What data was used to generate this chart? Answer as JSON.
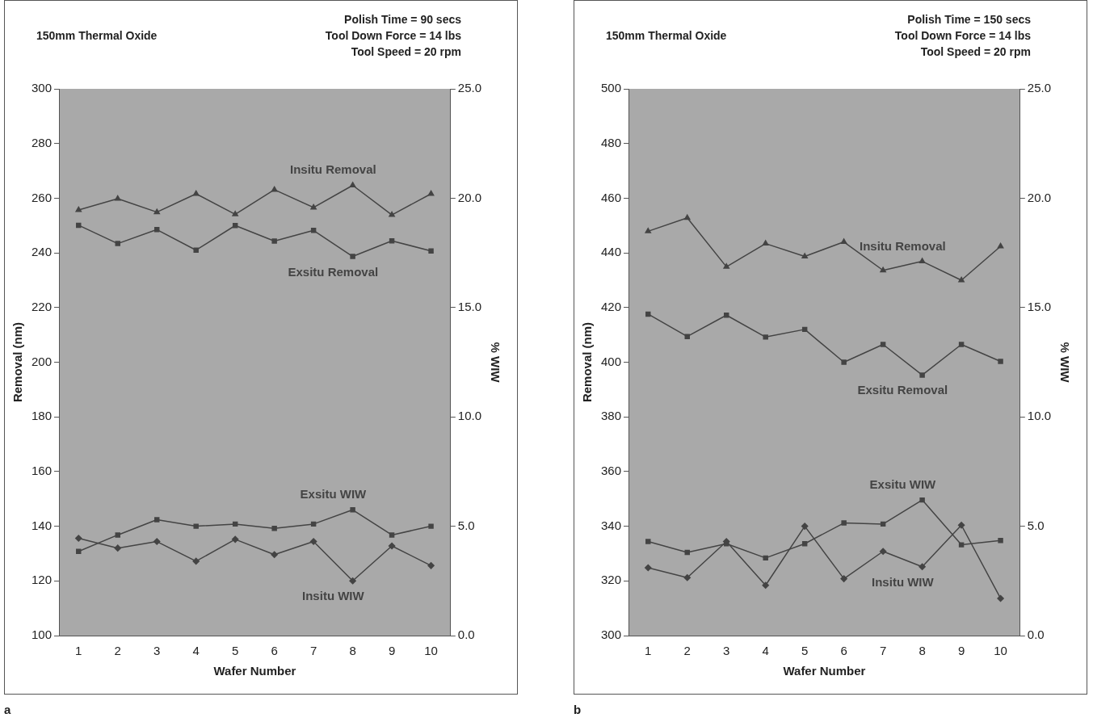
{
  "chart_data": [
    {
      "type": "line",
      "title": "150mm Thermal Oxide",
      "annotations": [
        "Polish Time = 90 secs",
        "Tool Down Force = 14 lbs",
        "Tool Speed = 20 rpm",
        "a"
      ],
      "xlabel": "Wafer Number",
      "ylabel": "Removal (nm)",
      "y2label": "% WIW",
      "categories": [
        "1",
        "2",
        "3",
        "4",
        "5",
        "6",
        "7",
        "8",
        "9",
        "10"
      ],
      "series": [
        {
          "name": "Insitu Removal",
          "color": "#444444",
          "marker": "triangle",
          "values": [
            255.7,
            259.8,
            254.9,
            261.6,
            254.1,
            263.1,
            256.6,
            264.7,
            253.9,
            261.6
          ]
        },
        {
          "name": "Exsitu Removal",
          "color": "#444444",
          "marker": "square",
          "values": [
            250.1,
            243.4,
            248.5,
            241.0,
            250.0,
            244.3,
            248.2,
            238.7,
            244.4,
            240.7
          ]
        },
        {
          "name": "Exsitu WIW",
          "color": "#444444",
          "marker": "square",
          "axis": "y2",
          "values": [
            3.85,
            4.6,
            5.3,
            5.0,
            5.1,
            4.9,
            5.1,
            5.75,
            4.6,
            5.0
          ]
        },
        {
          "name": "Insitu WIW",
          "color": "#444444",
          "marker": "diamond",
          "axis": "y2",
          "values": [
            4.45,
            4.0,
            4.3,
            3.4,
            4.4,
            3.7,
            4.3,
            2.5,
            4.1,
            3.2
          ]
        }
      ],
      "ylim": [
        100,
        300
      ],
      "yticks": [
        100,
        120,
        140,
        160,
        180,
        200,
        220,
        240,
        260,
        280,
        300
      ],
      "y2lim": [
        0,
        25
      ],
      "y2ticks": [
        {
          "value": 0,
          "label": "0.0"
        },
        {
          "value": 5,
          "label": "5.0"
        },
        {
          "value": 10,
          "label": "10.0"
        },
        {
          "value": 15,
          "label": "15.0"
        },
        {
          "value": 20,
          "label": "20.0"
        },
        {
          "value": 25,
          "label": "25.0"
        }
      ],
      "grid": false,
      "legend": false,
      "line_style": "solid"
    },
    {
      "type": "line",
      "title": "150mm Thermal Oxide",
      "annotations": [
        "Polish Time = 150 secs",
        "Tool Down Force = 14 lbs",
        "Tool Speed = 20 rpm",
        "b"
      ],
      "xlabel": "Wafer Number",
      "ylabel": "Removal (nm)",
      "y2label": "% WIW",
      "categories": [
        "1",
        "2",
        "3",
        "4",
        "5",
        "6",
        "7",
        "8",
        "9",
        "10"
      ],
      "series": [
        {
          "name": "Insitu Removal",
          "color": "#444444",
          "marker": "triangle",
          "values": [
            447.9,
            452.8,
            434.9,
            443.4,
            438.7,
            444.0,
            433.6,
            436.9,
            430.0,
            442.4
          ]
        },
        {
          "name": "Exsitu Removal",
          "color": "#444444",
          "marker": "square",
          "values": [
            417.6,
            409.4,
            417.2,
            409.2,
            412.0,
            400.0,
            406.5,
            395.3,
            406.5,
            400.3
          ]
        },
        {
          "name": "Exsitu WIW",
          "color": "#444444",
          "marker": "square",
          "axis": "y2",
          "values": [
            4.3,
            3.8,
            4.2,
            3.55,
            4.2,
            5.15,
            5.1,
            6.2,
            4.15,
            4.35
          ]
        },
        {
          "name": "Insitu WIW",
          "color": "#444444",
          "marker": "diamond",
          "axis": "y2",
          "values": [
            3.1,
            2.65,
            4.3,
            2.3,
            5.0,
            2.6,
            3.85,
            3.15,
            5.05,
            1.7
          ]
        }
      ],
      "ylim": [
        300,
        500
      ],
      "yticks": [
        300,
        320,
        340,
        360,
        380,
        400,
        420,
        440,
        460,
        480,
        500
      ],
      "y2lim": [
        0,
        25
      ],
      "y2ticks": [
        {
          "value": 0,
          "label": "0.0"
        },
        {
          "value": 5,
          "label": "5.0"
        },
        {
          "value": 10,
          "label": "10.0"
        },
        {
          "value": 15,
          "label": "15.0"
        },
        {
          "value": 20,
          "label": "20.0"
        },
        {
          "value": 25,
          "label": "25.0"
        }
      ],
      "grid": false,
      "legend": false,
      "line_style": "solid"
    }
  ]
}
